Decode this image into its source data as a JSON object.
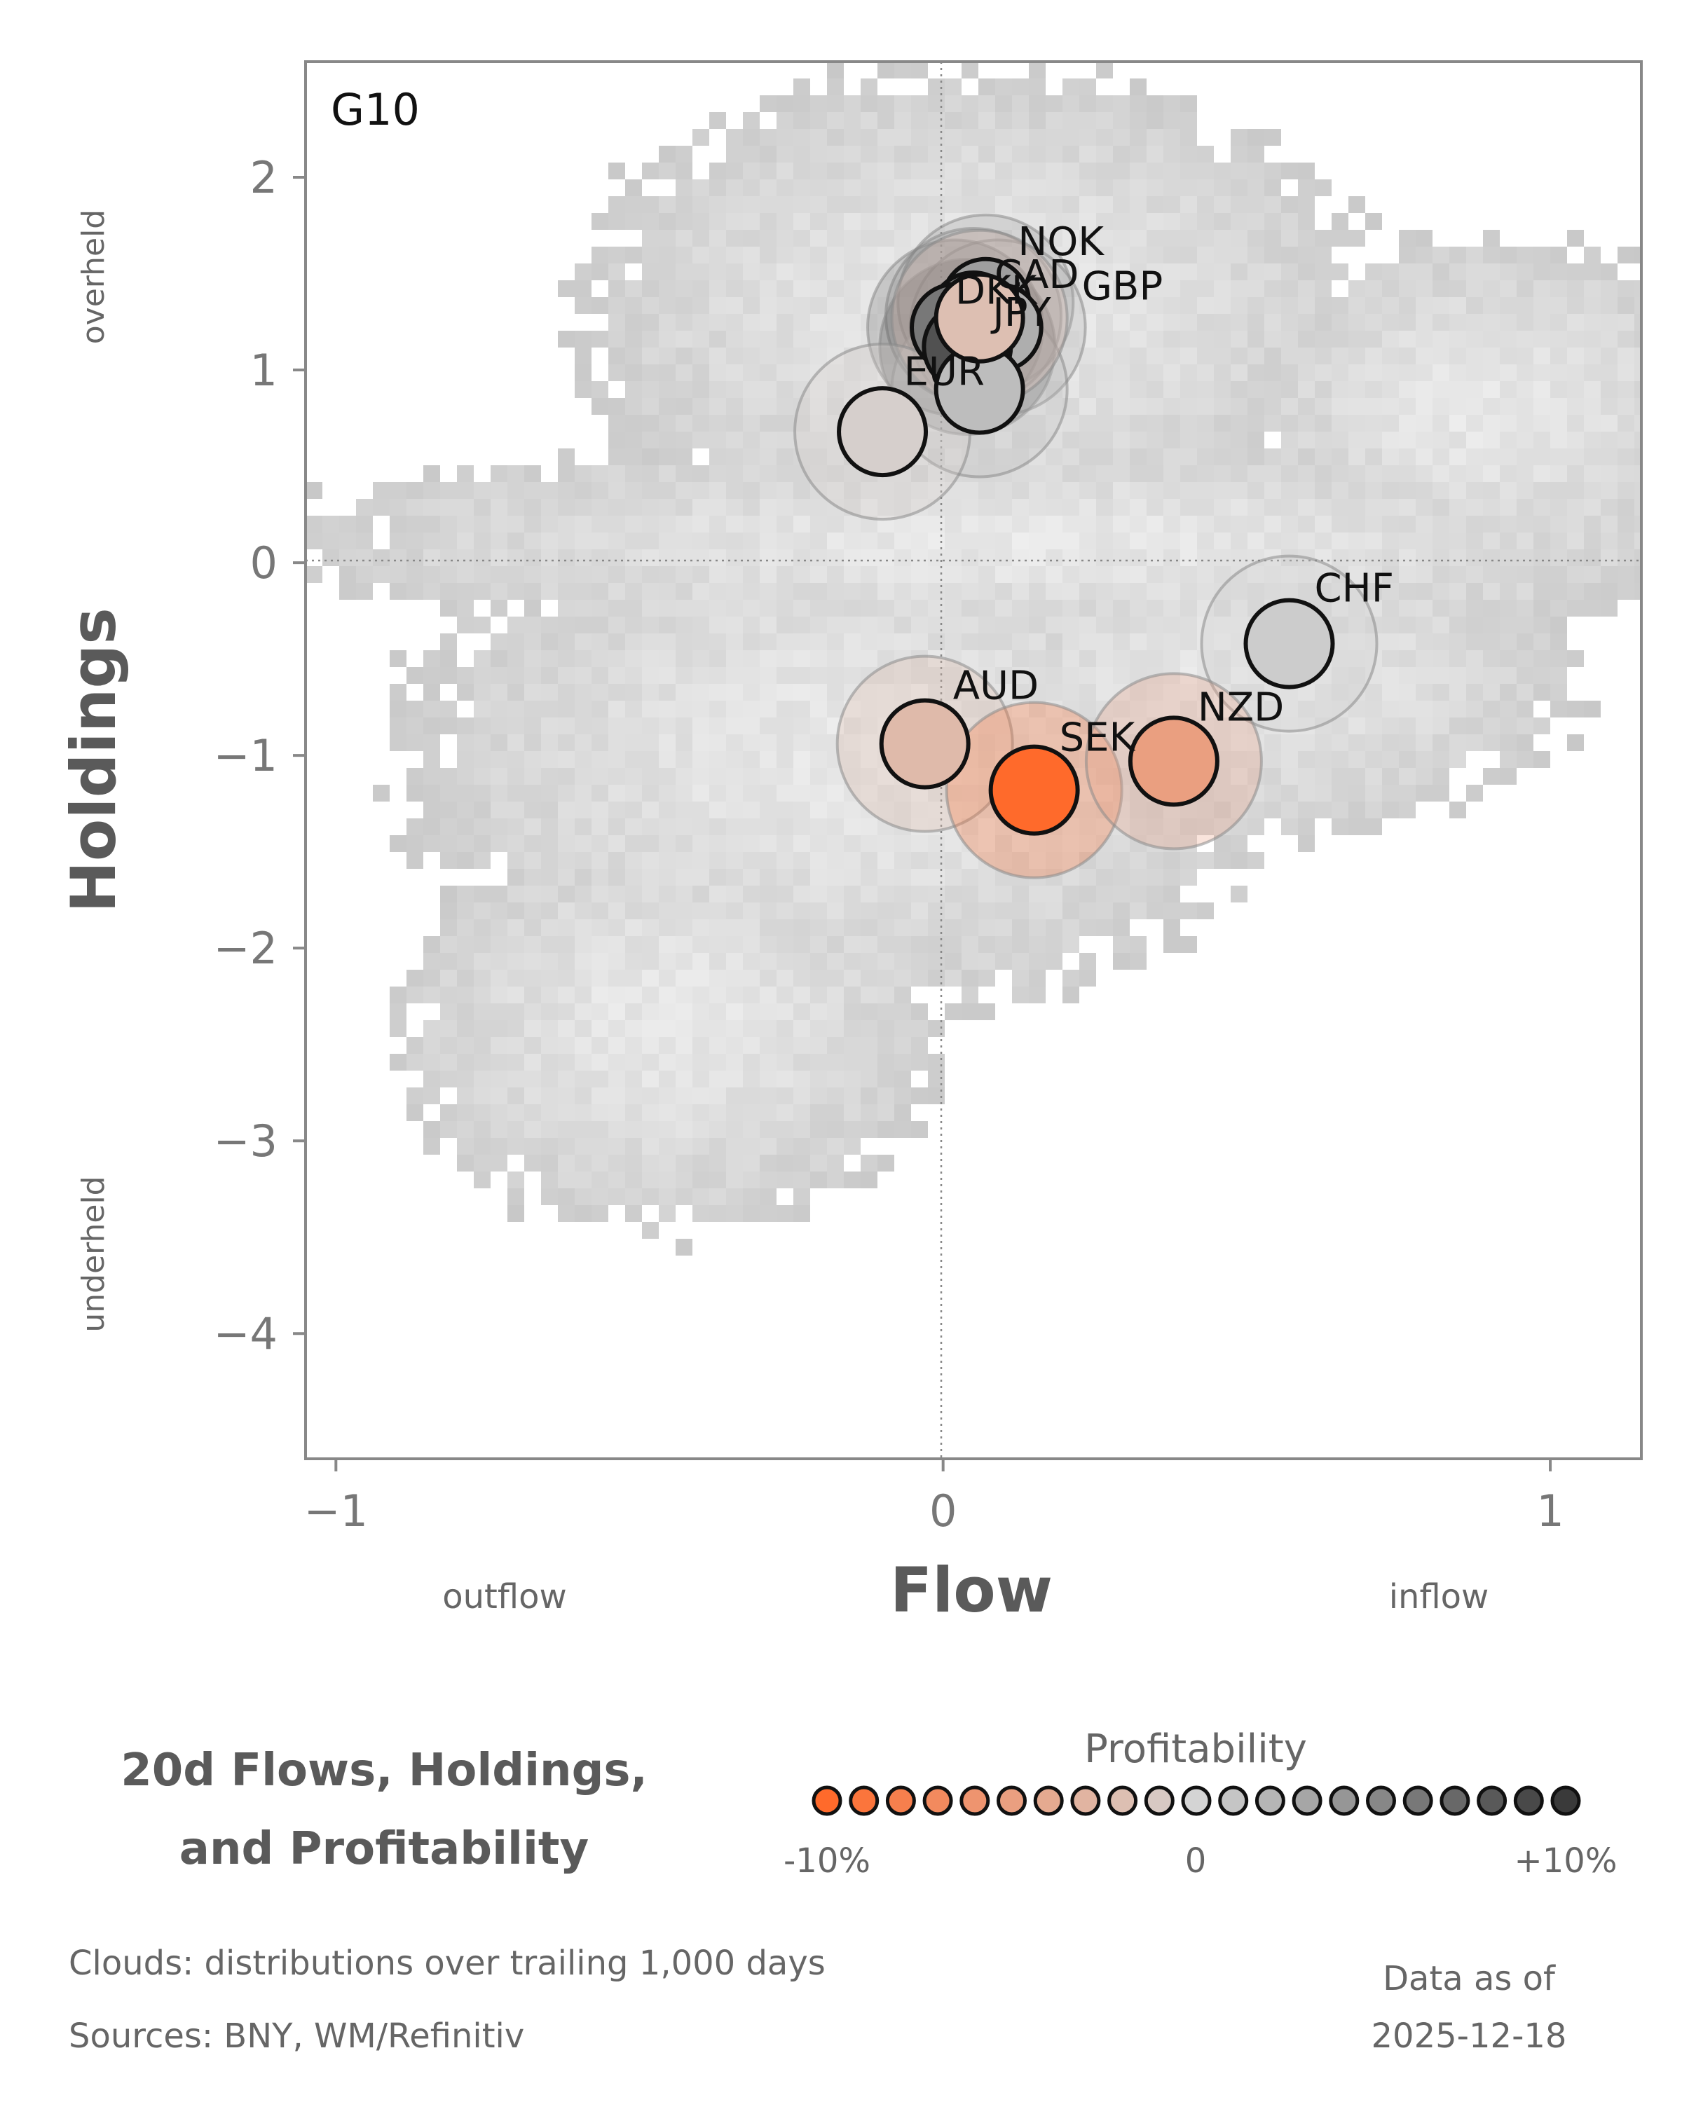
{
  "chart_data": {
    "type": "scatter",
    "panel_label": "G10",
    "xlabel": "Flow",
    "ylabel": "Holdings",
    "x_side_labels": {
      "left": "outflow",
      "right": "inflow"
    },
    "y_side_labels": {
      "top": "overheld",
      "bottom": "underheld"
    },
    "xlim": [
      -1.05,
      1.15
    ],
    "ylim": [
      -4.65,
      2.6
    ],
    "x_ticks": [
      -1,
      0,
      1
    ],
    "y_ticks": [
      2,
      1,
      0,
      -1,
      -2,
      -3,
      -4
    ],
    "reference_lines": {
      "x": 0,
      "y": 0
    },
    "legend_position": "bottom-right",
    "points": [
      {
        "label": "NOK",
        "flow": 0.07,
        "holdings": 1.35,
        "profitability": 3.5
      },
      {
        "label": "CAD",
        "flow": 0.05,
        "holdings": 1.28,
        "profitability": 4.5
      },
      {
        "label": "GBP",
        "flow": 0.09,
        "holdings": 1.22,
        "profitability": 2.5
      },
      {
        "label": "DKK",
        "flow": 0.02,
        "holdings": 1.22,
        "profitability": 6.0
      },
      {
        "label": "JPY",
        "flow": 0.04,
        "holdings": 1.12,
        "profitability": 8.5
      },
      {
        "label": "EUR",
        "flow": 0.06,
        "holdings": 0.9,
        "profitability": 1.5
      },
      {
        "label": "",
        "flow": 0.06,
        "holdings": 1.27,
        "profitability": -2.0
      },
      {
        "label": "",
        "flow": -0.1,
        "holdings": 0.68,
        "profitability": -0.5
      },
      {
        "label": "CHF",
        "flow": 0.57,
        "holdings": -0.42,
        "profitability": 0.5
      },
      {
        "label": "AUD",
        "flow": -0.03,
        "holdings": -0.94,
        "profitability": -2.5
      },
      {
        "label": "SEK",
        "flow": 0.15,
        "holdings": -1.18,
        "profitability": -10.0
      },
      {
        "label": "NZD",
        "flow": 0.38,
        "holdings": -1.03,
        "profitability": -5.0
      }
    ],
    "legend": {
      "title": "Profitability",
      "min_label": "-10%",
      "mid_label": "0",
      "max_label": "+10%",
      "range": [
        -10,
        10
      ],
      "swatch_count": 21
    },
    "colors": {
      "negative": "#ff6a2b",
      "neutral": "#d4d4d4",
      "positive": "#3a3a3a",
      "cloud": "#cccccc",
      "frame": "#888888"
    }
  },
  "footer": {
    "title_line1": "20d Flows, Holdings,",
    "title_line2": "and Profitability",
    "note1": "Clouds:  distributions over trailing 1,000 days",
    "note2": "Sources:  BNY, WM/Refinitiv",
    "date_label": "Data as of",
    "date_value": "2025-12-18"
  }
}
